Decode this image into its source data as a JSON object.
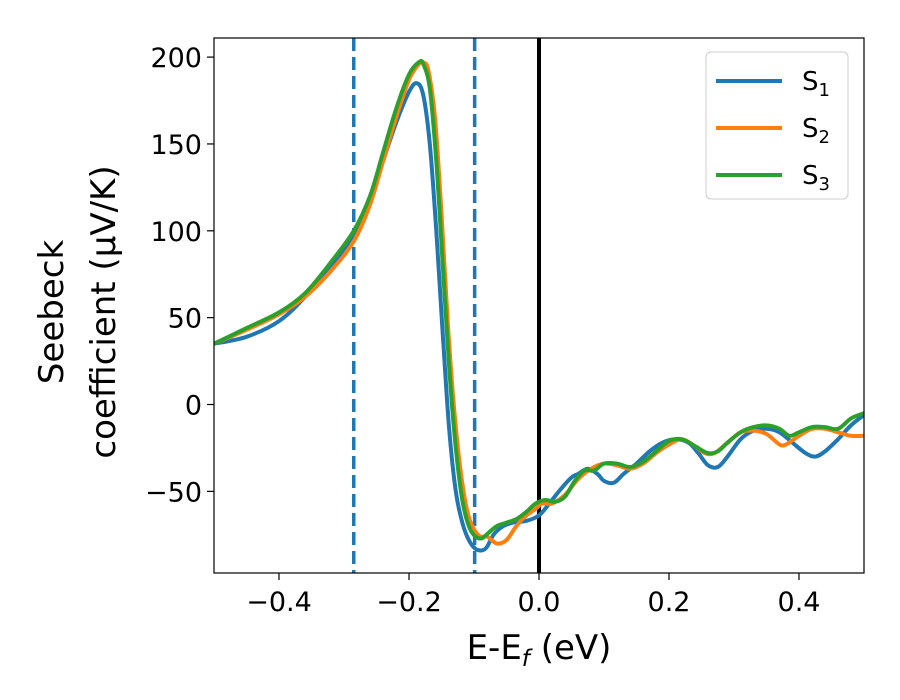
{
  "chart_data": {
    "type": "line",
    "xlabel": "E-E",
    "xlabel_sub": "f",
    "xlabel_unit": " (eV)",
    "ylabel_line1": "Seebeck",
    "ylabel_line2": "coefficient  (μV/K)",
    "xlim": [
      -0.5,
      0.5
    ],
    "ylim": [
      -97,
      211
    ],
    "x_ticks": [
      -0.4,
      -0.2,
      0.0,
      0.2,
      0.4
    ],
    "x_tick_labels": [
      "−0.4",
      "−0.2",
      "0.0",
      "0.2",
      "0.4"
    ],
    "y_ticks": [
      -50,
      0,
      50,
      100,
      150,
      200
    ],
    "y_tick_labels": [
      "−50",
      "0",
      "50",
      "100",
      "150",
      "200"
    ],
    "grid": false,
    "legend_position": "top-right",
    "vlines": [
      {
        "x": -0.285,
        "style": "dashed",
        "color": "#1f77b4"
      },
      {
        "x": -0.099,
        "style": "dashed",
        "color": "#1f77b4"
      },
      {
        "x": 0.0,
        "style": "solid",
        "color": "#000000"
      }
    ],
    "series": [
      {
        "name": "S",
        "sub": "1",
        "color": "#1f77b4",
        "points": [
          [
            -0.5,
            35
          ],
          [
            -0.45,
            39
          ],
          [
            -0.4,
            48
          ],
          [
            -0.36,
            62
          ],
          [
            -0.32,
            80
          ],
          [
            -0.285,
            97
          ],
          [
            -0.26,
            117
          ],
          [
            -0.24,
            140
          ],
          [
            -0.22,
            162
          ],
          [
            -0.2,
            180
          ],
          [
            -0.188,
            185
          ],
          [
            -0.178,
            178
          ],
          [
            -0.168,
            150
          ],
          [
            -0.158,
            100
          ],
          [
            -0.148,
            40
          ],
          [
            -0.138,
            -15
          ],
          [
            -0.128,
            -50
          ],
          [
            -0.118,
            -68
          ],
          [
            -0.108,
            -78
          ],
          [
            -0.098,
            -83
          ],
          [
            -0.088,
            -84
          ],
          [
            -0.08,
            -82
          ],
          [
            -0.07,
            -75
          ],
          [
            -0.055,
            -70
          ],
          [
            -0.04,
            -68
          ],
          [
            -0.02,
            -67
          ],
          [
            -0.005,
            -65
          ],
          [
            0.005,
            -62
          ],
          [
            0.02,
            -55
          ],
          [
            0.035,
            -48
          ],
          [
            0.05,
            -42
          ],
          [
            0.06,
            -40
          ],
          [
            0.075,
            -37
          ],
          [
            0.09,
            -40
          ],
          [
            0.1,
            -44
          ],
          [
            0.115,
            -45
          ],
          [
            0.13,
            -40
          ],
          [
            0.15,
            -34
          ],
          [
            0.17,
            -27
          ],
          [
            0.19,
            -22
          ],
          [
            0.21,
            -20
          ],
          [
            0.23,
            -22
          ],
          [
            0.245,
            -28
          ],
          [
            0.26,
            -35
          ],
          [
            0.275,
            -36
          ],
          [
            0.29,
            -30
          ],
          [
            0.31,
            -20
          ],
          [
            0.33,
            -15
          ],
          [
            0.35,
            -14
          ],
          [
            0.37,
            -16
          ],
          [
            0.39,
            -22
          ],
          [
            0.41,
            -28
          ],
          [
            0.425,
            -30
          ],
          [
            0.44,
            -27
          ],
          [
            0.46,
            -20
          ],
          [
            0.48,
            -12
          ],
          [
            0.5,
            -6
          ]
        ]
      },
      {
        "name": "S",
        "sub": "2",
        "color": "#ff7f0e",
        "points": [
          [
            -0.5,
            35
          ],
          [
            -0.45,
            43
          ],
          [
            -0.4,
            52
          ],
          [
            -0.36,
            62
          ],
          [
            -0.32,
            77
          ],
          [
            -0.285,
            94
          ],
          [
            -0.26,
            115
          ],
          [
            -0.24,
            140
          ],
          [
            -0.22,
            165
          ],
          [
            -0.2,
            187
          ],
          [
            -0.185,
            196
          ],
          [
            -0.178,
            197
          ],
          [
            -0.17,
            192
          ],
          [
            -0.16,
            165
          ],
          [
            -0.15,
            110
          ],
          [
            -0.14,
            45
          ],
          [
            -0.13,
            -5
          ],
          [
            -0.12,
            -40
          ],
          [
            -0.11,
            -62
          ],
          [
            -0.1,
            -72
          ],
          [
            -0.09,
            -76
          ],
          [
            -0.08,
            -76
          ],
          [
            -0.065,
            -80
          ],
          [
            -0.05,
            -78
          ],
          [
            -0.035,
            -70
          ],
          [
            -0.02,
            -64
          ],
          [
            -0.005,
            -60
          ],
          [
            0.005,
            -57
          ],
          [
            0.02,
            -57
          ],
          [
            0.04,
            -52
          ],
          [
            0.06,
            -43
          ],
          [
            0.08,
            -37
          ],
          [
            0.1,
            -34
          ],
          [
            0.12,
            -35
          ],
          [
            0.14,
            -37
          ],
          [
            0.16,
            -34
          ],
          [
            0.18,
            -28
          ],
          [
            0.2,
            -23
          ],
          [
            0.22,
            -20
          ],
          [
            0.24,
            -24
          ],
          [
            0.255,
            -28
          ],
          [
            0.27,
            -28
          ],
          [
            0.29,
            -22
          ],
          [
            0.31,
            -16
          ],
          [
            0.33,
            -15
          ],
          [
            0.35,
            -17
          ],
          [
            0.37,
            -23
          ],
          [
            0.38,
            -23
          ],
          [
            0.4,
            -18
          ],
          [
            0.42,
            -14
          ],
          [
            0.44,
            -14
          ],
          [
            0.46,
            -16
          ],
          [
            0.48,
            -18
          ],
          [
            0.5,
            -18
          ]
        ]
      },
      {
        "name": "S",
        "sub": "3",
        "color": "#2ca02c",
        "points": [
          [
            -0.5,
            35
          ],
          [
            -0.45,
            44
          ],
          [
            -0.4,
            53
          ],
          [
            -0.36,
            64
          ],
          [
            -0.32,
            82
          ],
          [
            -0.285,
            100
          ],
          [
            -0.26,
            120
          ],
          [
            -0.24,
            145
          ],
          [
            -0.22,
            170
          ],
          [
            -0.2,
            190
          ],
          [
            -0.185,
            197
          ],
          [
            -0.178,
            196
          ],
          [
            -0.168,
            182
          ],
          [
            -0.158,
            140
          ],
          [
            -0.148,
            80
          ],
          [
            -0.138,
            20
          ],
          [
            -0.128,
            -25
          ],
          [
            -0.118,
            -55
          ],
          [
            -0.108,
            -70
          ],
          [
            -0.098,
            -76
          ],
          [
            -0.088,
            -77
          ],
          [
            -0.078,
            -74
          ],
          [
            -0.065,
            -70
          ],
          [
            -0.05,
            -68
          ],
          [
            -0.035,
            -66
          ],
          [
            -0.02,
            -62
          ],
          [
            -0.005,
            -57
          ],
          [
            0.01,
            -55
          ],
          [
            0.025,
            -56
          ],
          [
            0.04,
            -53
          ],
          [
            0.055,
            -44
          ],
          [
            0.07,
            -38
          ],
          [
            0.085,
            -38
          ],
          [
            0.1,
            -34
          ],
          [
            0.12,
            -34
          ],
          [
            0.14,
            -36
          ],
          [
            0.16,
            -33
          ],
          [
            0.18,
            -27
          ],
          [
            0.2,
            -21
          ],
          [
            0.22,
            -20
          ],
          [
            0.24,
            -24
          ],
          [
            0.26,
            -28
          ],
          [
            0.275,
            -27
          ],
          [
            0.29,
            -22
          ],
          [
            0.31,
            -16
          ],
          [
            0.33,
            -13
          ],
          [
            0.35,
            -12
          ],
          [
            0.37,
            -14
          ],
          [
            0.385,
            -18
          ],
          [
            0.4,
            -16
          ],
          [
            0.42,
            -13
          ],
          [
            0.44,
            -13
          ],
          [
            0.46,
            -14
          ],
          [
            0.48,
            -8
          ],
          [
            0.5,
            -5
          ]
        ]
      }
    ]
  }
}
